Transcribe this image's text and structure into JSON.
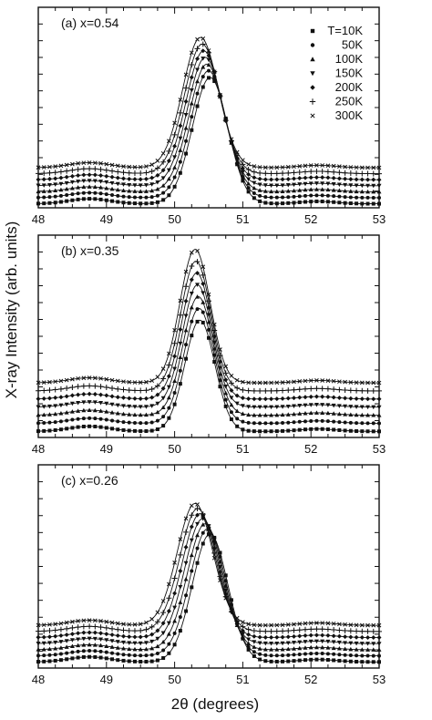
{
  "figure": {
    "ylabel": "X-ray Intensity (arb. units)",
    "xlabel": "2θ (degrees)"
  },
  "legend": {
    "entries": [
      "T=10K",
      "50K",
      "100K",
      "150K",
      "200K",
      "250K",
      "300K"
    ],
    "markers": [
      "square",
      "circle",
      "triangle-up",
      "triangle-down",
      "diamond",
      "plus",
      "cross"
    ]
  },
  "chart_data": [
    {
      "type": "line",
      "panel_label": "(a) x=0.54",
      "xlim": [
        48,
        53
      ],
      "xticks": [
        "48",
        "49",
        "50",
        "51",
        "52",
        "53"
      ],
      "grid": false,
      "legend_position": "top-right",
      "peak": {
        "center_10K": 50.52,
        "center_300K": 50.38,
        "width": 0.26,
        "height_10K": 0.63,
        "height_300K": 0.65
      },
      "series": [
        {
          "name": "T=10K",
          "baseline": 0.02
        },
        {
          "name": "50K",
          "baseline": 0.05
        },
        {
          "name": "100K",
          "baseline": 0.08
        },
        {
          "name": "150K",
          "baseline": 0.11
        },
        {
          "name": "200K",
          "baseline": 0.14
        },
        {
          "name": "250K",
          "baseline": 0.17
        },
        {
          "name": "300K",
          "baseline": 0.2
        }
      ]
    },
    {
      "type": "line",
      "panel_label": "(b) x=0.35",
      "xlim": [
        48,
        53
      ],
      "xticks": [
        "48",
        "49",
        "50",
        "51",
        "52",
        "53"
      ],
      "grid": false,
      "peak": {
        "center_10K": 50.37,
        "center_300K": 50.3,
        "width": 0.22,
        "height_10K": 0.55,
        "height_300K": 0.66
      },
      "series": [
        {
          "name": "T=10K",
          "baseline": 0.03
        },
        {
          "name": "50K",
          "baseline": 0.07
        },
        {
          "name": "100K",
          "baseline": 0.11
        },
        {
          "name": "150K",
          "baseline": 0.15
        },
        {
          "name": "200K",
          "baseline": 0.19
        },
        {
          "name": "250K",
          "baseline": 0.23
        },
        {
          "name": "300K",
          "baseline": 0.27
        }
      ]
    },
    {
      "type": "line",
      "panel_label": "(c) x=0.26",
      "xlim": [
        48,
        53
      ],
      "xticks": [
        "48",
        "49",
        "50",
        "51",
        "52",
        "53"
      ],
      "grid": false,
      "peak": {
        "center_10K": 50.52,
        "center_300K": 50.3,
        "width": 0.26,
        "height_10K": 0.63,
        "height_300K": 0.6
      },
      "series": [
        {
          "name": "T=10K",
          "baseline": 0.03
        },
        {
          "name": "50K",
          "baseline": 0.06
        },
        {
          "name": "100K",
          "baseline": 0.09
        },
        {
          "name": "150K",
          "baseline": 0.12
        },
        {
          "name": "200K",
          "baseline": 0.15
        },
        {
          "name": "250K",
          "baseline": 0.18
        },
        {
          "name": "300K",
          "baseline": 0.21
        }
      ]
    }
  ]
}
